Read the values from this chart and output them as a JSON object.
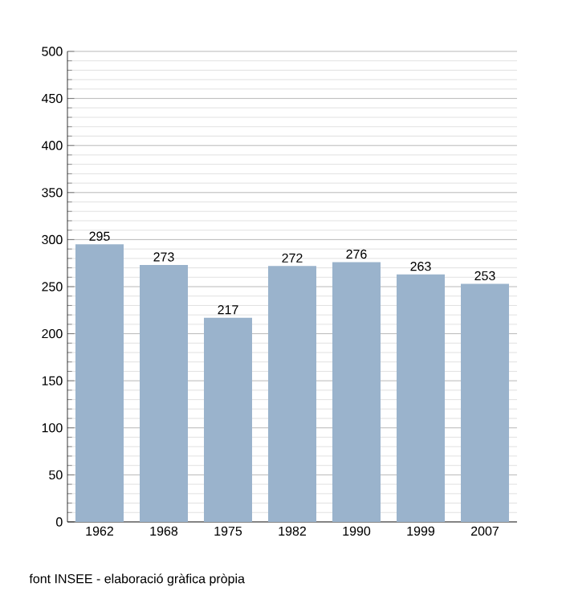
{
  "chart_data": {
    "type": "bar",
    "categories": [
      "1962",
      "1968",
      "1975",
      "1982",
      "1990",
      "1999",
      "2007"
    ],
    "values": [
      295,
      273,
      217,
      272,
      276,
      263,
      253
    ],
    "color": "#9ab3cc",
    "ylim": [
      0,
      500
    ],
    "yticks": [
      0,
      50,
      100,
      150,
      200,
      250,
      300,
      350,
      400,
      450,
      500
    ],
    "grid": "y",
    "data_labels": true,
    "annotations": [
      "font INSEE - elaboració gràfica pròpia"
    ]
  }
}
